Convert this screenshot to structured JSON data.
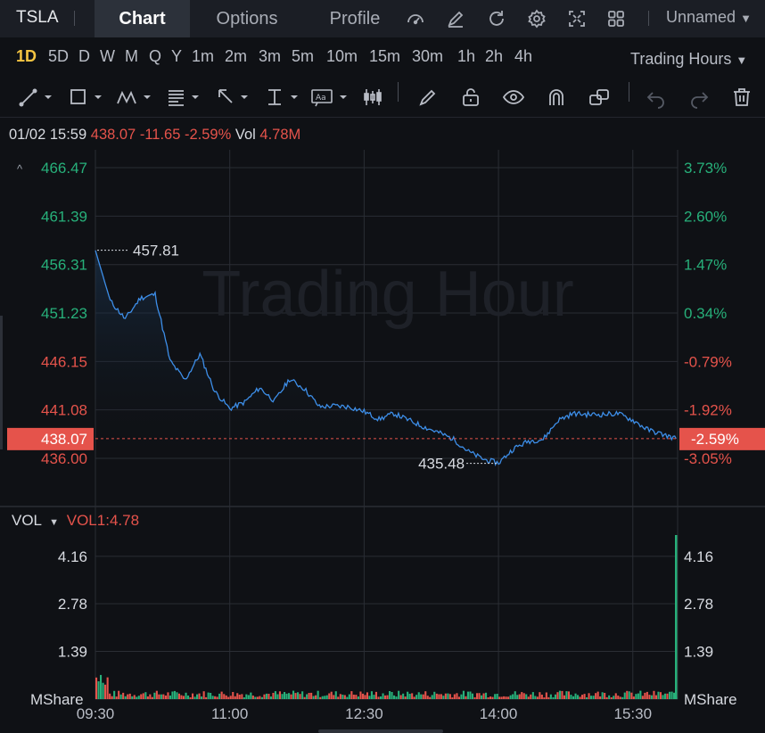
{
  "topbar": {
    "ticker": "TSLA",
    "tabs": [
      {
        "label": "Chart",
        "active": true
      },
      {
        "label": "Options",
        "active": false
      },
      {
        "label": "Profile",
        "active": false
      }
    ],
    "icons": [
      "gauge-icon",
      "edit-icon",
      "refresh-icon",
      "settings-gear-icon",
      "fullscreen-icon",
      "grid-layout-icon"
    ],
    "account": "Unnamed"
  },
  "periods": {
    "items": [
      "1D",
      "5D",
      "D",
      "W",
      "M",
      "Q",
      "Y",
      "1m",
      "2m",
      "3m",
      "5m",
      "10m",
      "15m",
      "30m",
      "1h",
      "2h",
      "4h"
    ],
    "active": "1D",
    "trading_hours": "Trading Hours"
  },
  "toolbar": {
    "tools": [
      "line-tool-icon",
      "rectangle-tool-icon",
      "pattern-tool-icon",
      "fibonacci-tool-icon",
      "arrow-tool-icon",
      "measure-tool-icon",
      "text-tool-icon",
      "candle-tool-icon",
      "brush-icon",
      "lock-icon",
      "eye-icon",
      "magnet-icon",
      "copy-icon",
      "undo-icon",
      "redo-icon",
      "trash-icon"
    ]
  },
  "info": {
    "datetime": "01/02 15:59",
    "price": "438.07",
    "change": "-11.65",
    "change_pct": "-2.59%",
    "vol_label": "Vol",
    "vol_value": "4.78M"
  },
  "watermark": "Trading Hour",
  "volume_header": {
    "label": "VOL",
    "indicator": "VOL1:4.78"
  },
  "colors": {
    "up": "#27b07a",
    "down": "#e5534b",
    "line": "#3d8ee8",
    "accent": "#f5c542"
  },
  "chart_data": {
    "type": "line",
    "title": "",
    "price_axis_left": [
      "466.47",
      "461.39",
      "456.31",
      "451.23",
      "446.15",
      "441.08",
      "436.00"
    ],
    "percent_axis_right": [
      "3.73%",
      "2.60%",
      "1.47%",
      "0.34%",
      "-0.79%",
      "-1.92%",
      "-3.05%"
    ],
    "current_price_tag": "438.07",
    "current_pct_tag": "-2.59%",
    "high_label": "457.81",
    "low_label": "435.48",
    "x_ticks": [
      "09:30",
      "11:00",
      "12:30",
      "14:00",
      "15:30"
    ],
    "x_minutes": [
      0,
      10,
      20,
      30,
      40,
      50,
      60,
      70,
      80,
      90,
      100,
      110,
      120,
      130,
      140,
      150,
      160,
      170,
      180,
      190,
      200,
      210,
      220,
      230,
      240,
      250,
      260,
      270,
      280,
      290,
      300,
      310,
      320,
      330,
      340,
      350,
      360,
      370,
      380,
      389
    ],
    "prices": [
      457.8,
      452.5,
      450.6,
      452.8,
      453.2,
      446.2,
      444.2,
      446.9,
      443.0,
      441.2,
      441.9,
      443.4,
      442.0,
      444.3,
      443.3,
      441.4,
      441.5,
      441.4,
      440.9,
      440.1,
      440.7,
      440.0,
      439.3,
      438.7,
      438.0,
      436.7,
      435.9,
      435.5,
      437.0,
      437.8,
      438.0,
      440.0,
      440.7,
      440.6,
      440.6,
      440.7,
      440.0,
      439.0,
      438.5,
      438.07
    ],
    "volume_axis": [
      "4.16",
      "2.78",
      "1.39"
    ],
    "volume_unit": "MShare",
    "volume_max": 4.78,
    "volume_last": 4.78
  }
}
